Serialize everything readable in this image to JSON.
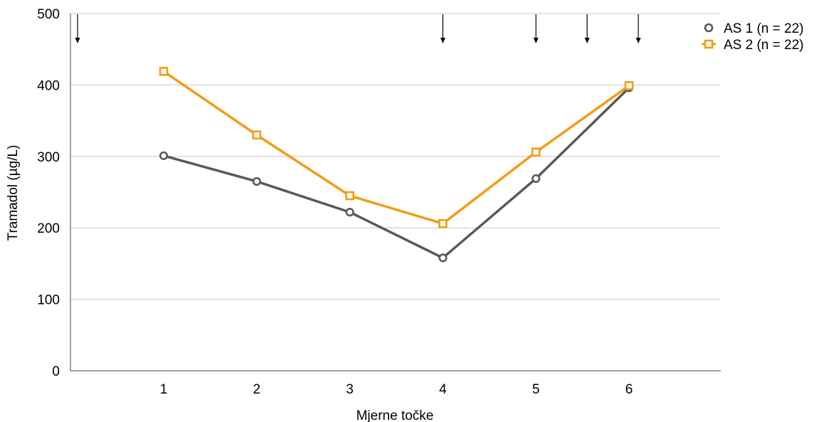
{
  "chart_data": {
    "type": "line",
    "xlabel": "Mjerne točke",
    "ylabel": "Tramadol (µg/L)",
    "categories": [
      "1",
      "2",
      "3",
      "4",
      "5",
      "6"
    ],
    "ylim": [
      0,
      500
    ],
    "yticks": [
      "0",
      "100",
      "200",
      "300",
      "400",
      "500"
    ],
    "grid": "horizontal",
    "legend_position": "top-right",
    "series": [
      {
        "name": "AS 1 (n = 22)",
        "values": [
          301,
          265,
          222,
          158,
          269,
          396
        ],
        "color": "#595959",
        "marker": "circle"
      },
      {
        "name": "AS 2 (n = 22)",
        "values": [
          419,
          330,
          245,
          206,
          306,
          399
        ],
        "color": "#F39C12",
        "marker": "square"
      }
    ],
    "dose_arrows_x": [
      0,
      4,
      5,
      5.55,
      6.1
    ]
  }
}
